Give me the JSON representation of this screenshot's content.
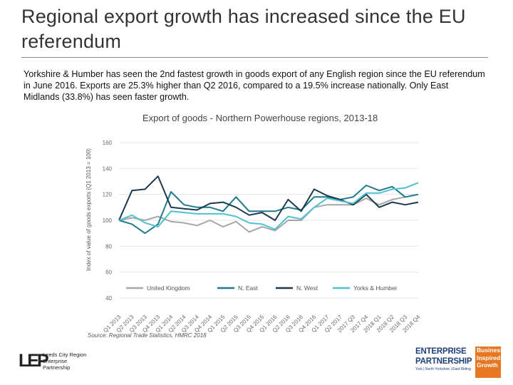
{
  "slide": {
    "title": "Regional export growth has increased since the EU referendum",
    "body": "Yorkshire & Humber has seen the 2nd fastest growth in goods export of any English region since the EU referendum in June 2016. Exports are 25.3% higher than Q2 2016, compared to a 19.5% increase nationally. Only East Midlands (33.8%) has seen faster growth."
  },
  "chart_data": {
    "type": "line",
    "title": "Export of goods - Northern Powerhouse regions, 2013-18",
    "ylabel": "Index of value of goods exports (Q1 2013 = 100)",
    "xlabel": "",
    "ylim": [
      40,
      160
    ],
    "yticks": [
      40,
      60,
      80,
      100,
      120,
      140,
      160
    ],
    "source": "Source: Regional Trade Statistics, HMRC 2018",
    "legend_position": "bottom",
    "categories": [
      "Q1 2013",
      "Q2 2013",
      "Q3 2013",
      "Q4 2013",
      "Q1 2014",
      "Q2 2014",
      "Q3 2014",
      "Q4 2014",
      "Q1 2015",
      "Q2 2015",
      "Q3 2015",
      "Q4 2015",
      "Q1 2016",
      "Q2 2016",
      "Q3 2016",
      "Q4 2016",
      "Q1 2017",
      "Q2 2017",
      "2017 Q3",
      "2017 Q4",
      "2018 Q1",
      "2018 Q2",
      "2018 Q3",
      "2018 Q4"
    ],
    "series": [
      {
        "name": "United Kingdom",
        "color": "#a6a6a6",
        "values": [
          100,
          102,
          100,
          103,
          99,
          98,
          96,
          100,
          95,
          99,
          91,
          95,
          92,
          100,
          100,
          110,
          112,
          112,
          112,
          117,
          112,
          116,
          118,
          120
        ]
      },
      {
        "name": "N. East",
        "color": "#1f7a8c",
        "values": [
          100,
          97,
          90,
          97,
          122,
          112,
          110,
          110,
          107,
          118,
          107,
          107,
          107,
          110,
          108,
          118,
          118,
          116,
          118,
          127,
          123,
          126,
          118,
          120
        ]
      },
      {
        "name": "N. West",
        "color": "#1b3a4b",
        "values": [
          100,
          123,
          124,
          134,
          110,
          109,
          108,
          113,
          114,
          110,
          104,
          106,
          100,
          116,
          107,
          124,
          119,
          116,
          112,
          120,
          110,
          114,
          112,
          114
        ]
      },
      {
        "name": "Yorks & Humber",
        "color": "#4fc1d1",
        "values": [
          100,
          104,
          98,
          95,
          107,
          106,
          105,
          105,
          105,
          103,
          98,
          97,
          93,
          103,
          101,
          110,
          117,
          115,
          113,
          121,
          121,
          124,
          125,
          129
        ]
      }
    ]
  },
  "logos": {
    "leeds_mark": "LEP",
    "leeds_line1": "Leeds City Region",
    "leeds_line2": "Enterprise",
    "leeds_line3": "Partnership",
    "ep_line1": "ENTERPRISE",
    "ep_line2": "PARTNERSHIP",
    "ep_line3": "York | North Yorkshire | East Riding",
    "ep_tag1": "Business",
    "ep_tag2": "Inspired",
    "ep_tag3": "Growth"
  }
}
